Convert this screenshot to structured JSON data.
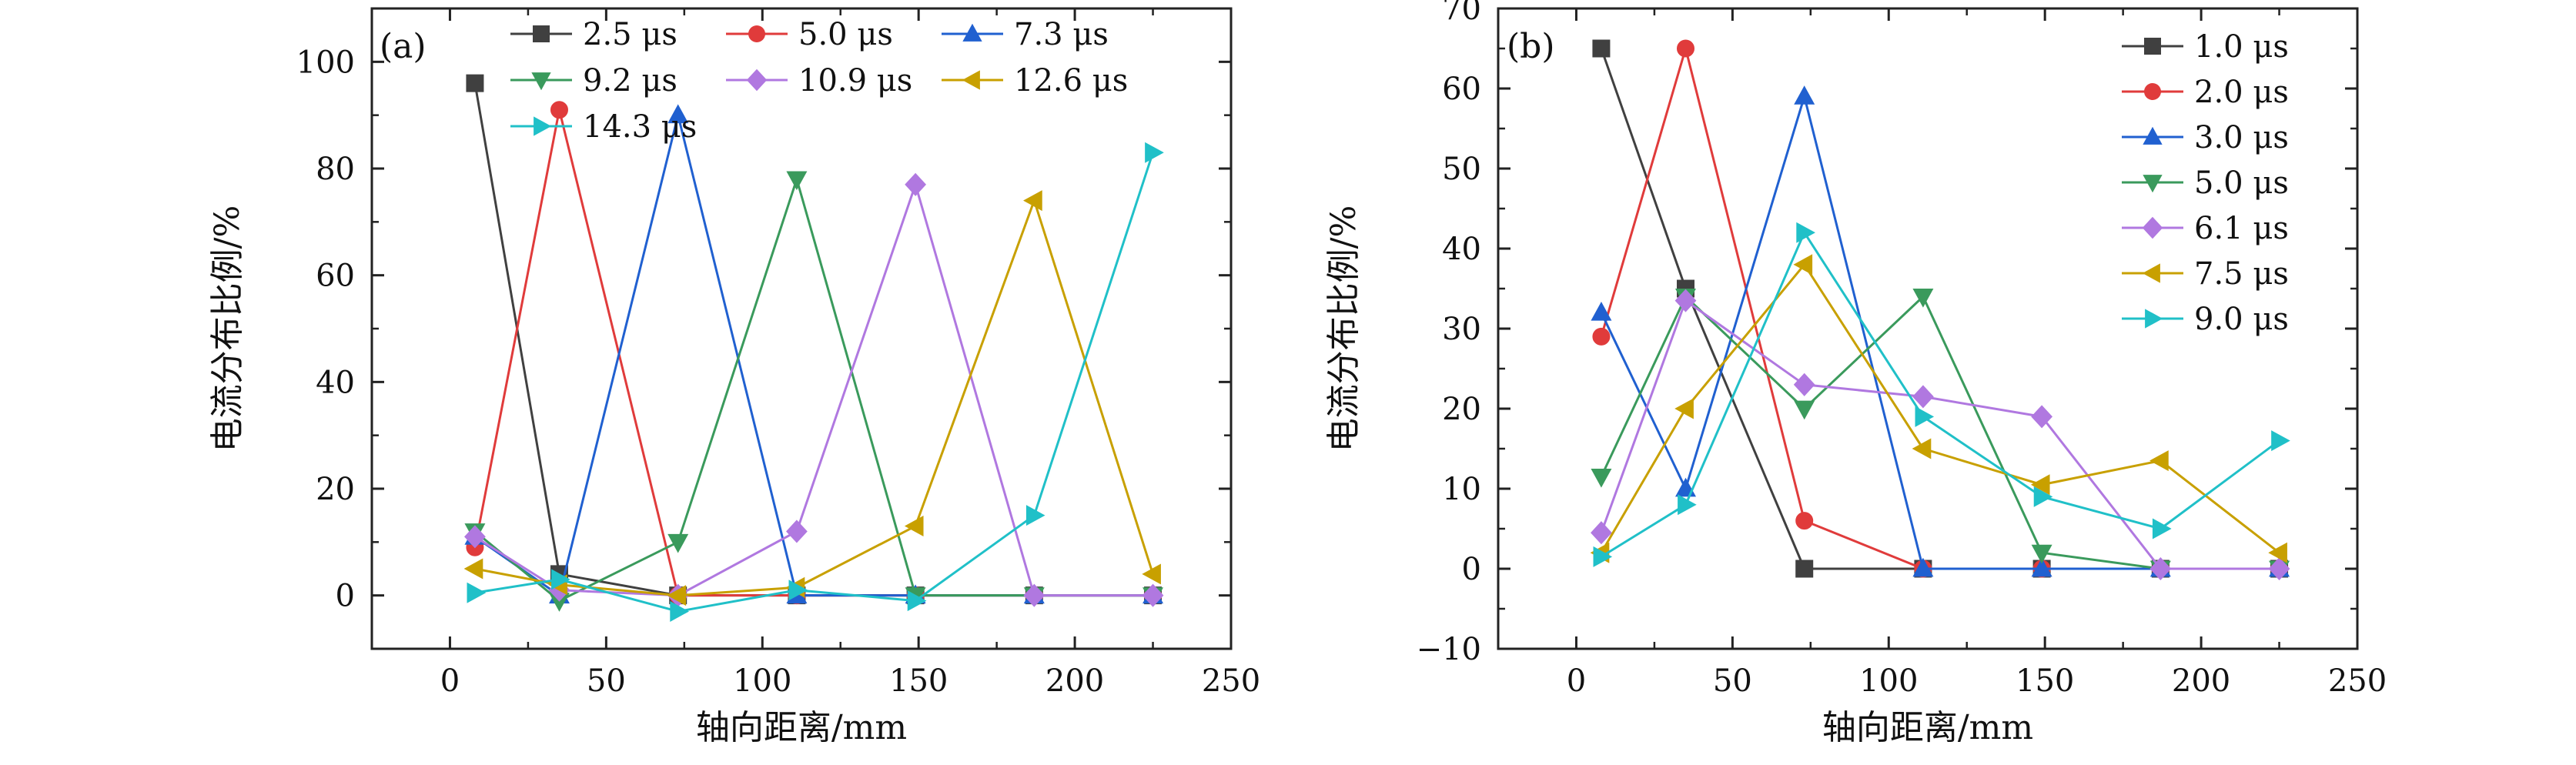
{
  "chart_data": [
    {
      "type": "line",
      "panel_label": "(a)",
      "xlabel": "轴向距离/mm",
      "ylabel": "电流分布比例/%",
      "xlim": [
        -25,
        250
      ],
      "ylim": [
        -10,
        110
      ],
      "x_ticks": [
        0,
        50,
        100,
        150,
        200,
        250
      ],
      "y_ticks": [
        0,
        20,
        40,
        60,
        80,
        100
      ],
      "x": [
        8,
        35,
        73,
        111,
        149,
        187,
        225
      ],
      "legend_placement": "top-right",
      "legend_columns": 3,
      "series": [
        {
          "name": "2.5 μs",
          "color": "#404040",
          "marker": "square",
          "values": [
            96,
            4,
            0,
            0,
            0,
            0,
            0
          ]
        },
        {
          "name": "5.0 μs",
          "color": "#e03b3b",
          "marker": "circle",
          "values": [
            9,
            91,
            0,
            0,
            0,
            0,
            0
          ]
        },
        {
          "name": "7.3 μs",
          "color": "#2060d0",
          "marker": "triangle-up",
          "values": [
            11,
            0,
            90,
            0,
            0,
            0,
            0
          ]
        },
        {
          "name": "9.2 μs",
          "color": "#3a9a5c",
          "marker": "triangle-down",
          "values": [
            12,
            -1,
            10,
            78,
            0,
            0,
            0
          ]
        },
        {
          "name": "10.9 μs",
          "color": "#b078e0",
          "marker": "diamond",
          "values": [
            11,
            1,
            0,
            12,
            77,
            0,
            0
          ]
        },
        {
          "name": "12.6 μs",
          "color": "#c8a000",
          "marker": "triangle-left",
          "values": [
            5,
            2,
            0,
            1.5,
            13,
            74,
            4
          ]
        },
        {
          "name": "14.3 μs",
          "color": "#20c0c8",
          "marker": "triangle-right",
          "values": [
            0.5,
            3,
            -3,
            1,
            -1,
            15,
            83
          ]
        }
      ]
    },
    {
      "type": "line",
      "panel_label": "(b)",
      "xlabel": "轴向距离/mm",
      "ylabel": "电流分布比例/%",
      "xlim": [
        -25,
        250
      ],
      "ylim": [
        -10,
        70
      ],
      "x_ticks": [
        0,
        50,
        100,
        150,
        200,
        250
      ],
      "y_ticks": [
        -10,
        0,
        10,
        20,
        30,
        40,
        50,
        60,
        70
      ],
      "x": [
        8,
        35,
        73,
        111,
        149,
        187,
        225
      ],
      "legend_placement": "top-right",
      "legend_columns": 1,
      "series": [
        {
          "name": "1.0 μs",
          "color": "#404040",
          "marker": "square",
          "values": [
            65,
            35,
            0,
            0,
            0,
            0,
            0
          ]
        },
        {
          "name": "2.0 μs",
          "color": "#e03b3b",
          "marker": "circle",
          "values": [
            29,
            65,
            6,
            0,
            0,
            0,
            0
          ]
        },
        {
          "name": "3.0 μs",
          "color": "#2060d0",
          "marker": "triangle-up",
          "values": [
            32,
            10,
            59,
            0,
            0,
            0,
            0
          ]
        },
        {
          "name": "5.0 μs",
          "color": "#3a9a5c",
          "marker": "triangle-down",
          "values": [
            11.5,
            34,
            20,
            34,
            2,
            0,
            0
          ]
        },
        {
          "name": "6.1 μs",
          "color": "#b078e0",
          "marker": "diamond",
          "values": [
            4.5,
            33.5,
            23,
            21.5,
            19,
            0,
            0
          ]
        },
        {
          "name": "7.5 μs",
          "color": "#c8a000",
          "marker": "triangle-left",
          "values": [
            2,
            20,
            38,
            15,
            10.5,
            13.5,
            2
          ]
        },
        {
          "name": "9.0 μs",
          "color": "#20c0c8",
          "marker": "triangle-right",
          "values": [
            1.5,
            8,
            42,
            19,
            9,
            5,
            16
          ]
        }
      ]
    }
  ]
}
